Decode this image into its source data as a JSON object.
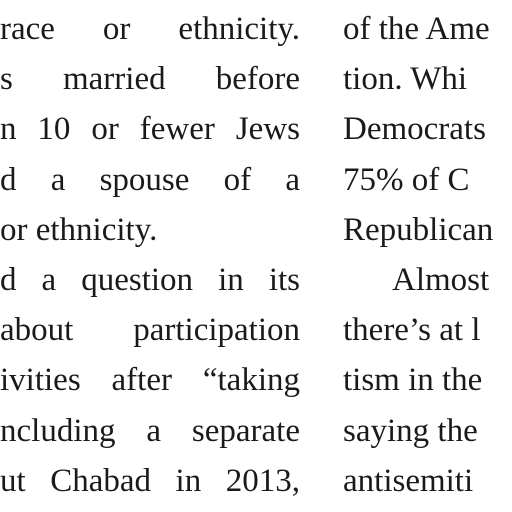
{
  "left_column": {
    "lines": [
      "race or ethnicity.",
      "s married before",
      "n 10 or fewer Jews",
      "d a spouse of a",
      "or ethnicity.",
      "d a question in its",
      "about participation",
      "ivities after “taking",
      "ncluding a separate",
      "ut Chabad in 2013,"
    ]
  },
  "right_column": {
    "lines": [
      "of the Ame",
      "tion. Whi",
      "Democrats",
      "75% of C",
      "Republican",
      "Almost",
      "there’s at l",
      "tism in the",
      "saying the",
      "antisemiti"
    ]
  }
}
